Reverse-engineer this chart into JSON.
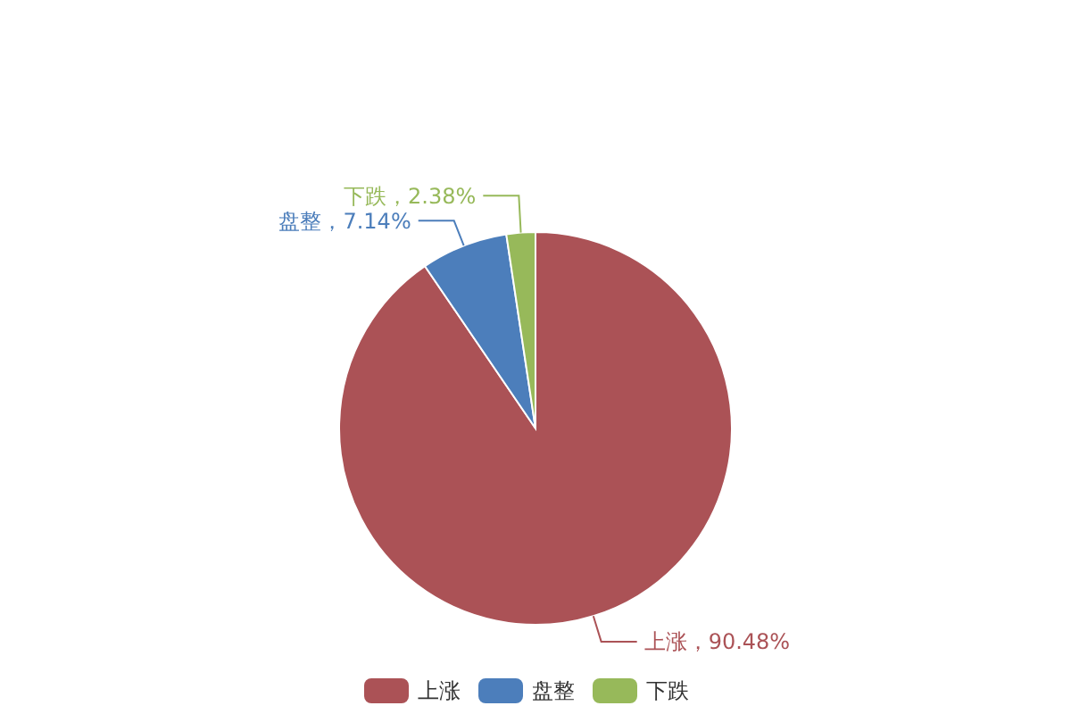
{
  "chart_data": {
    "type": "pie",
    "categories": [
      "上涨",
      "盘整",
      "下跌"
    ],
    "values": [
      90.48,
      7.14,
      2.38
    ],
    "colors": [
      "#ab5256",
      "#4c7ebb",
      "#97b95a"
    ],
    "value_labels": [
      "上涨，90.48%",
      "盘整，7.14%",
      "下跌，2.38%"
    ],
    "legend": "bottom"
  }
}
